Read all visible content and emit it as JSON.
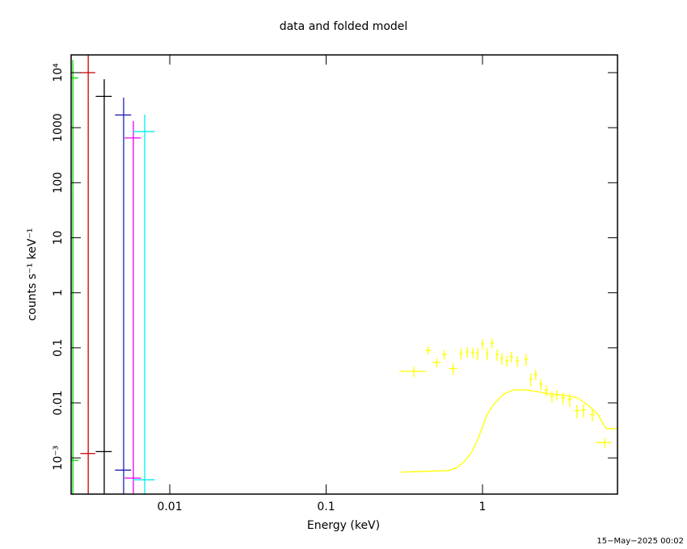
{
  "chart_data": {
    "type": "scatter",
    "title": "data and folded model",
    "xlabel": "Energy (keV)",
    "ylabel": "counts s⁻¹ keV⁻¹",
    "timestamp": "15−May−2025 00:02",
    "xscale": "log",
    "yscale": "log",
    "xlim": [
      0.00234,
      7.3
    ],
    "ylim": [
      0.00022,
      21000
    ],
    "xticks": [
      0.01,
      0.1,
      1
    ],
    "yticks": [
      {
        "value": 10000,
        "label": "10⁴"
      },
      1000,
      100,
      10,
      1,
      0.1,
      0.01,
      {
        "value": 0.001,
        "label": "10⁻³"
      }
    ],
    "series": [
      {
        "color": "#00dd00",
        "x": [
          0.0024,
          0.0024
        ],
        "xerr": [
          0.0002,
          0.0002
        ],
        "values": [
          8000,
          0.0009
        ],
        "yerr": [
          9000,
          null
        ]
      },
      {
        "color": "#c80000",
        "x": [
          0.00301,
          0.00301
        ],
        "xerr": [
          0.00033,
          0.00033
        ],
        "values": [
          10000,
          0.0012
        ],
        "yerr": [
          12000,
          null
        ]
      },
      {
        "color": "#000000",
        "x": [
          0.00381,
          0.00381
        ],
        "xerr": [
          0.00045,
          0.00045
        ],
        "values": [
          3700,
          0.0013
        ],
        "yerr": [
          3900,
          null
        ]
      },
      {
        "color": "#2020b0",
        "x": [
          0.00507,
          0.00507
        ],
        "xerr": [
          0.0006,
          0.0006
        ],
        "values": [
          1700,
          0.0006
        ],
        "yerr": [
          1800,
          null
        ]
      },
      {
        "color": "#ee00ee",
        "x": [
          0.00585,
          0.00585
        ],
        "xerr": [
          0.0007,
          0.0007
        ],
        "values": [
          650,
          0.00043
        ],
        "yerr": [
          670,
          null
        ]
      },
      {
        "color": "#00eeee",
        "x": [
          0.00692,
          0.00692
        ],
        "xerr": [
          0.0011,
          0.0011
        ],
        "values": [
          850,
          0.0004
        ],
        "yerr": [
          890,
          null
        ]
      },
      {
        "color": "#ffff00",
        "x": [
          0.364,
          0.45,
          0.51,
          0.57,
          0.65,
          0.73,
          0.8,
          0.87,
          0.93,
          1.0,
          1.07,
          1.15,
          1.24,
          1.33,
          1.43,
          1.53,
          1.67,
          1.9,
          2.04,
          2.19,
          2.36,
          2.56,
          2.78,
          2.99,
          3.28,
          3.61,
          4.02,
          4.42,
          5.04,
          6.03
        ],
        "xerr": [
          0.07,
          0.02,
          0.03,
          0.02,
          0.04,
          0.02,
          0.02,
          0.02,
          0.02,
          0.02,
          0.02,
          0.03,
          0.03,
          0.03,
          0.03,
          0.04,
          0.04,
          0.05,
          0.05,
          0.06,
          0.06,
          0.07,
          0.08,
          0.09,
          0.1,
          0.12,
          0.14,
          0.17,
          0.2,
          0.7
        ],
        "values": [
          0.0375,
          0.09,
          0.054,
          0.076,
          0.042,
          0.079,
          0.084,
          0.082,
          0.079,
          0.118,
          0.079,
          0.122,
          0.076,
          0.064,
          0.058,
          0.069,
          0.058,
          0.062,
          0.027,
          0.033,
          0.022,
          0.017,
          0.0132,
          0.0141,
          0.0123,
          0.0115,
          0.0072,
          0.0074,
          0.0061,
          0.0019
        ],
        "yerr": [
          0.008,
          0.015,
          0.01,
          0.015,
          0.01,
          0.018,
          0.018,
          0.018,
          0.02,
          0.025,
          0.02,
          0.025,
          0.018,
          0.015,
          0.013,
          0.015,
          0.013,
          0.015,
          0.007,
          0.007,
          0.005,
          0.004,
          0.003,
          0.003,
          0.003,
          0.003,
          0.002,
          0.002,
          0.0015,
          0.0004
        ]
      },
      {
        "color": "#ffff00",
        "style": "line",
        "x": [
          0.3,
          0.61,
          0.69,
          0.77,
          0.85,
          0.92,
          1.0,
          1.07,
          1.2,
          1.35,
          1.57,
          1.88,
          2.25,
          2.68,
          3.4,
          4.07,
          4.86,
          5.47,
          6.17,
          7.3
        ],
        "values": [
          0.00055,
          0.00059,
          0.00067,
          0.00088,
          0.00124,
          0.002,
          0.0036,
          0.0062,
          0.01,
          0.0141,
          0.0172,
          0.0172,
          0.016,
          0.0146,
          0.0136,
          0.0123,
          0.0085,
          0.0062,
          0.0034,
          0.0034
        ]
      }
    ]
  }
}
